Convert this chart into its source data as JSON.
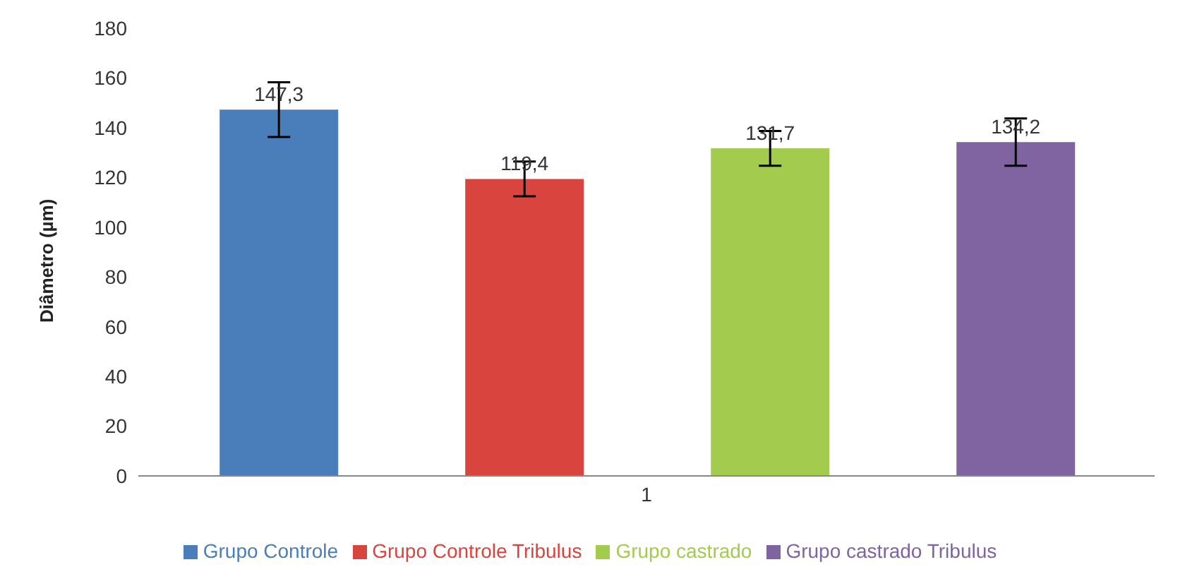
{
  "chart_data": {
    "type": "bar",
    "ylabel": "Diâmetro (µm)",
    "categories": [
      "1"
    ],
    "ylim": [
      0,
      180
    ],
    "yticks": [
      0,
      20,
      40,
      60,
      80,
      100,
      120,
      140,
      160,
      180
    ],
    "grid": false,
    "legend": "bottom",
    "series": [
      {
        "name": "Grupo Controle",
        "color": "#4a7ebb",
        "values": [
          147.3
        ],
        "errors": [
          11
        ],
        "value_labels": [
          "147,3"
        ]
      },
      {
        "name": "Grupo Controle Tribulus",
        "color": "#d9443f",
        "values": [
          119.4
        ],
        "errors": [
          7
        ],
        "value_labels": [
          "119,4"
        ]
      },
      {
        "name": "Grupo castrado",
        "color": "#a3cc4e",
        "values": [
          131.7
        ],
        "errors": [
          7
        ],
        "value_labels": [
          "131,7"
        ]
      },
      {
        "name": "Grupo castrado Tribulus",
        "color": "#8064a2",
        "values": [
          134.2
        ],
        "errors": [
          9.5
        ],
        "value_labels": [
          "134,2"
        ]
      }
    ]
  }
}
